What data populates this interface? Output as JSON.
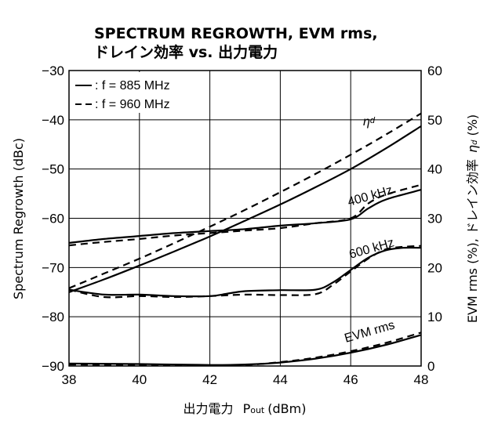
{
  "chart_data": {
    "type": "line",
    "title_lines": [
      "SPECTRUM REGROWTH, EVM rms,",
      "ドレイン効率 vs. 出力電力"
    ],
    "xlabel": "出力電力",
    "xlabel_symbol": "P",
    "xlabel_sub": "out",
    "xlabel_unit": "(dBm)",
    "ylabel": "Spectrum Regrowth (dBc)",
    "y2label": "EVM rms (%), ドレイン効率",
    "y2label_symbol": "η",
    "y2label_sub": "d",
    "y2label_unit": "(%)",
    "xlim": [
      38,
      48
    ],
    "ylim": [
      -90,
      -30
    ],
    "y2lim": [
      0,
      60
    ],
    "xticks": [
      "38",
      "40",
      "42",
      "44",
      "46",
      "48"
    ],
    "yticks": [
      "−30",
      "−40",
      "−50",
      "−60",
      "−70",
      "−80",
      "−90"
    ],
    "y2ticks": [
      "60",
      "50",
      "40",
      "30",
      "20",
      "10",
      "0"
    ],
    "grid": true,
    "legend_position": "top-left",
    "legend": [
      {
        "label": ": f = 885 MHz",
        "dash": "solid"
      },
      {
        "label": ": f = 960 MHz",
        "dash": "dashed"
      }
    ],
    "annotations": [
      {
        "text": "η",
        "sub": "d",
        "x": 46.6,
        "y": 50.0,
        "axis": "right"
      },
      {
        "text": "400 kHz",
        "x": 46.6,
        "y": -56.5,
        "axis": "left"
      },
      {
        "text": "600 kHz",
        "x": 46.6,
        "y": -67.0,
        "axis": "left"
      },
      {
        "text": "EVM rms",
        "x": 46.6,
        "y": 5.0,
        "axis": "right"
      }
    ],
    "series": [
      {
        "group": "efficiency",
        "freq": "885 MHz",
        "axis": "right",
        "dash": "solid",
        "x": [
          38,
          39,
          40,
          41,
          42,
          43,
          44,
          45,
          46,
          47,
          48
        ],
        "y": [
          15.0,
          17.6,
          20.4,
          23.3,
          26.3,
          29.5,
          32.8,
          36.3,
          40.0,
          44.2,
          48.7
        ]
      },
      {
        "group": "efficiency",
        "freq": "960 MHz",
        "axis": "right",
        "dash": "dashed",
        "x": [
          38,
          39,
          40,
          41,
          42,
          43,
          44,
          45,
          46,
          47,
          48
        ],
        "y": [
          15.8,
          18.8,
          21.8,
          25.0,
          28.3,
          31.7,
          35.3,
          39.0,
          42.9,
          47.0,
          51.3
        ]
      },
      {
        "group": "400 kHz",
        "freq": "885 MHz",
        "axis": "left",
        "dash": "solid",
        "x": [
          38,
          39,
          40,
          41,
          42,
          43,
          44,
          45,
          46,
          46.5,
          47,
          48
        ],
        "y": [
          -65.0,
          -64.2,
          -63.6,
          -63.0,
          -62.6,
          -62.2,
          -61.5,
          -61.0,
          -60.2,
          -58.0,
          -56.2,
          -54.2
        ]
      },
      {
        "group": "400 kHz",
        "freq": "960 MHz",
        "axis": "left",
        "dash": "dashed",
        "x": [
          38,
          39,
          40,
          41,
          42,
          43,
          44,
          45,
          46,
          46.5,
          47,
          48
        ],
        "y": [
          -65.5,
          -64.8,
          -64.2,
          -63.5,
          -63.0,
          -62.5,
          -62.0,
          -61.0,
          -60.0,
          -57.0,
          -55.2,
          -53.2
        ]
      },
      {
        "group": "600 kHz",
        "freq": "885 MHz",
        "axis": "left",
        "dash": "solid",
        "x": [
          38,
          39,
          40,
          41,
          42,
          42.5,
          43,
          44,
          45,
          45.5,
          46,
          46.5,
          47,
          47.5,
          48
        ],
        "y": [
          -74.5,
          -75.5,
          -75.5,
          -75.8,
          -75.8,
          -75.3,
          -74.8,
          -74.6,
          -74.5,
          -73.0,
          -70.5,
          -68.0,
          -66.5,
          -66.0,
          -66.0
        ]
      },
      {
        "group": "600 kHz",
        "freq": "960 MHz",
        "axis": "left",
        "dash": "dashed",
        "x": [
          38,
          39,
          40,
          41,
          42,
          43,
          44,
          45,
          45.5,
          46,
          46.5,
          47,
          47.5,
          48
        ],
        "y": [
          -74.5,
          -76.0,
          -75.8,
          -76.0,
          -75.8,
          -75.5,
          -75.6,
          -75.4,
          -73.5,
          -70.8,
          -68.2,
          -66.3,
          -65.8,
          -65.6
        ]
      },
      {
        "group": "EVM rms",
        "freq": "885 MHz",
        "axis": "right",
        "dash": "solid",
        "x": [
          38,
          40,
          42,
          43,
          44,
          45,
          46,
          47,
          48
        ],
        "y": [
          0.5,
          0.4,
          0.2,
          0.3,
          0.7,
          1.5,
          2.7,
          4.3,
          6.3
        ]
      },
      {
        "group": "EVM rms",
        "freq": "960 MHz",
        "axis": "right",
        "dash": "dashed",
        "x": [
          38,
          40,
          42,
          43,
          44,
          45,
          46,
          47,
          48
        ],
        "y": [
          0.3,
          0.2,
          0.1,
          0.2,
          0.8,
          1.7,
          3.0,
          4.7,
          6.8
        ]
      }
    ]
  }
}
